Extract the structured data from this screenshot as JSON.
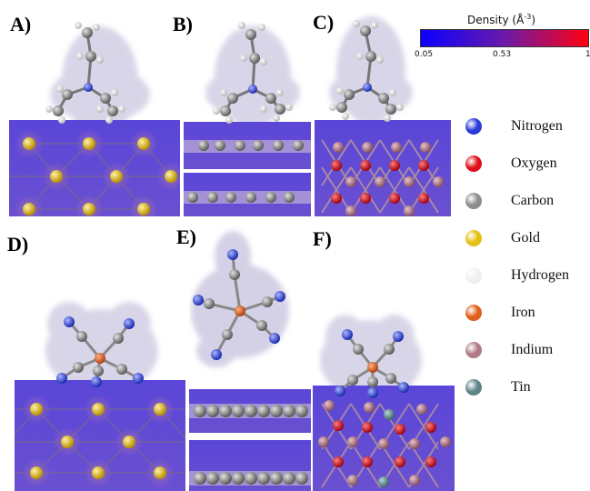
{
  "panels": {
    "a": "A)",
    "b": "B)",
    "c": "C)",
    "d": "D)",
    "e": "E)",
    "f": "F)"
  },
  "colorbar": {
    "title": "Density (Å",
    "title_sup": "-3",
    "title_end": ")",
    "min_label": "0.05",
    "mid_label": "0.53",
    "max_label": "1",
    "colors": [
      "#0a00ff",
      "#6a1aa8",
      "#ff0010"
    ]
  },
  "legend": [
    {
      "label": "Nitrogen",
      "color": "#2a3bd8"
    },
    {
      "label": "Oxygen",
      "color": "#e0101a"
    },
    {
      "label": "Carbon",
      "color": "#8c8c8c"
    },
    {
      "label": "Gold",
      "color": "#e4c012"
    },
    {
      "label": "Hydrogen",
      "color": "#f0f0f0"
    },
    {
      "label": "Iron",
      "color": "#e0601a"
    },
    {
      "label": "Indium",
      "color": "#b07a86"
    },
    {
      "label": "Tin",
      "color": "#5f8488"
    }
  ]
}
